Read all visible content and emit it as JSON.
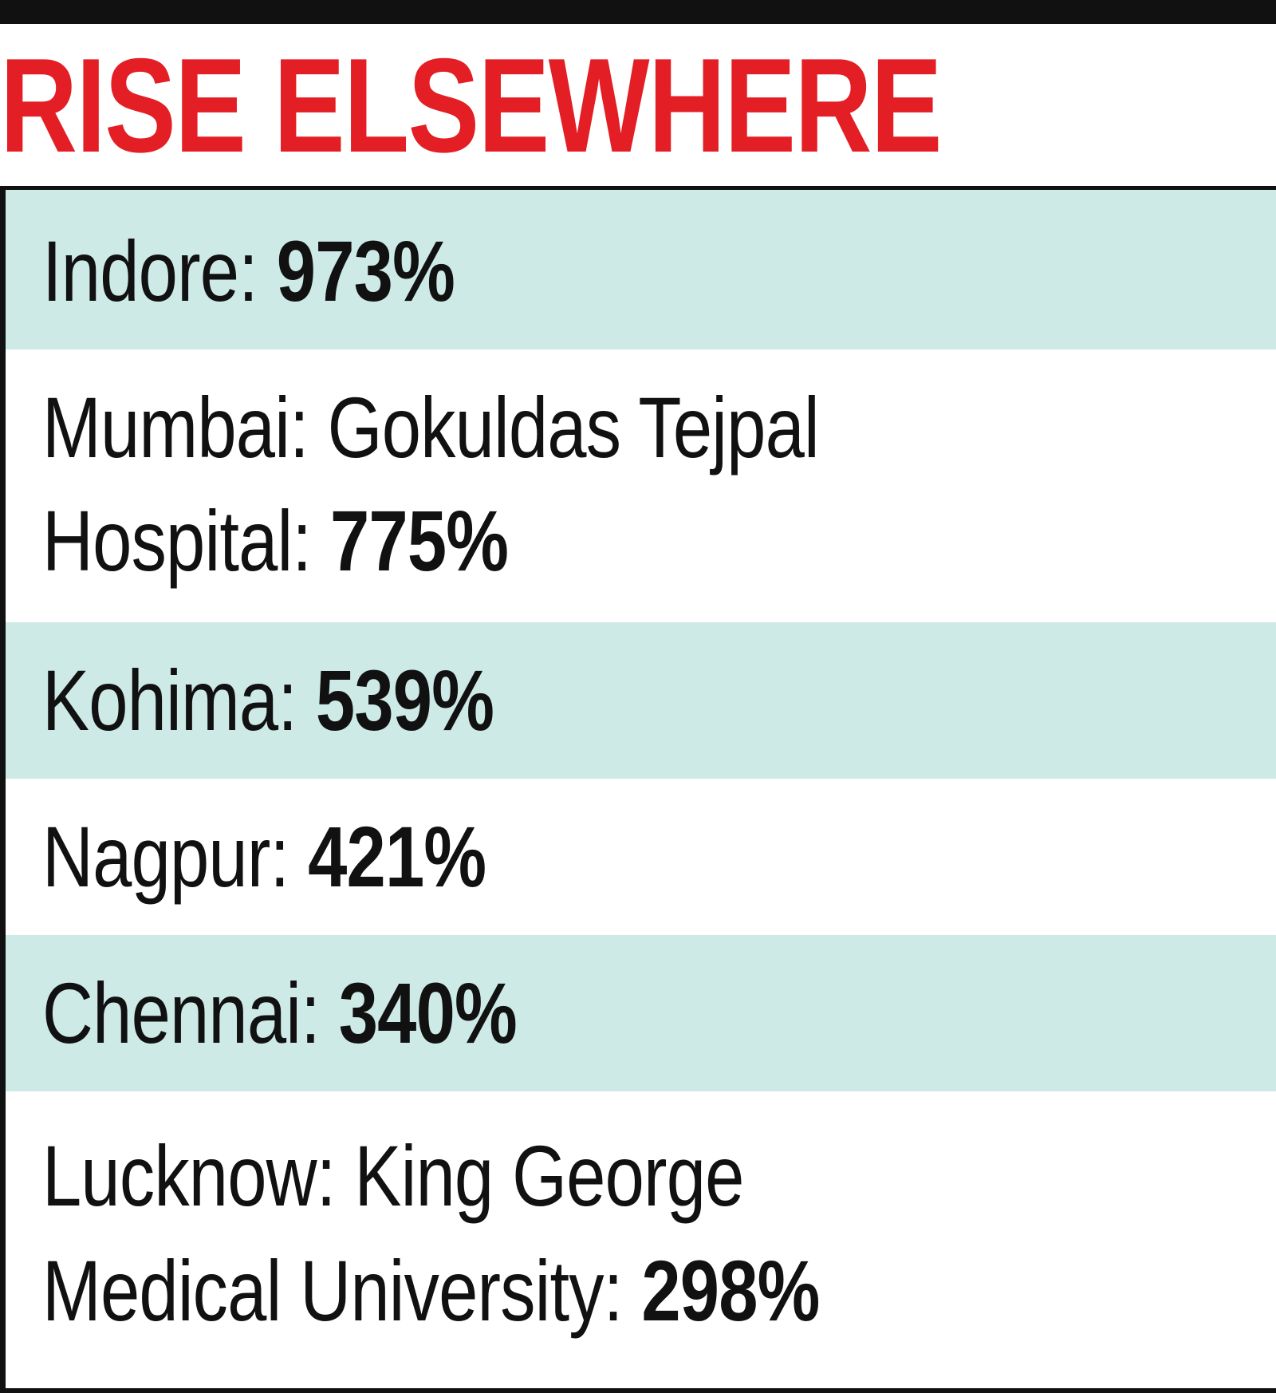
{
  "title": "RISE ELSEWHERE",
  "colors": {
    "title": "#e31e24",
    "shaded_row": "#cdeae7",
    "rule": "#111111",
    "text": "#111111"
  },
  "rows": [
    {
      "lines": [
        {
          "label": "Indore: ",
          "value": "973%"
        }
      ]
    },
    {
      "lines": [
        {
          "label": "Mumbai: Gokuldas Tejpal",
          "value": ""
        },
        {
          "label": "Hospital: ",
          "value": "775%"
        }
      ]
    },
    {
      "lines": [
        {
          "label": "Kohima: ",
          "value": "539%"
        }
      ]
    },
    {
      "lines": [
        {
          "label": "Nagpur: ",
          "value": "421%"
        }
      ]
    },
    {
      "lines": [
        {
          "label": "Chennai: ",
          "value": "340%"
        }
      ]
    },
    {
      "lines": [
        {
          "label": "Lucknow: King George",
          "value": ""
        },
        {
          "label": "Medical University: ",
          "value": "298%"
        }
      ]
    }
  ]
}
